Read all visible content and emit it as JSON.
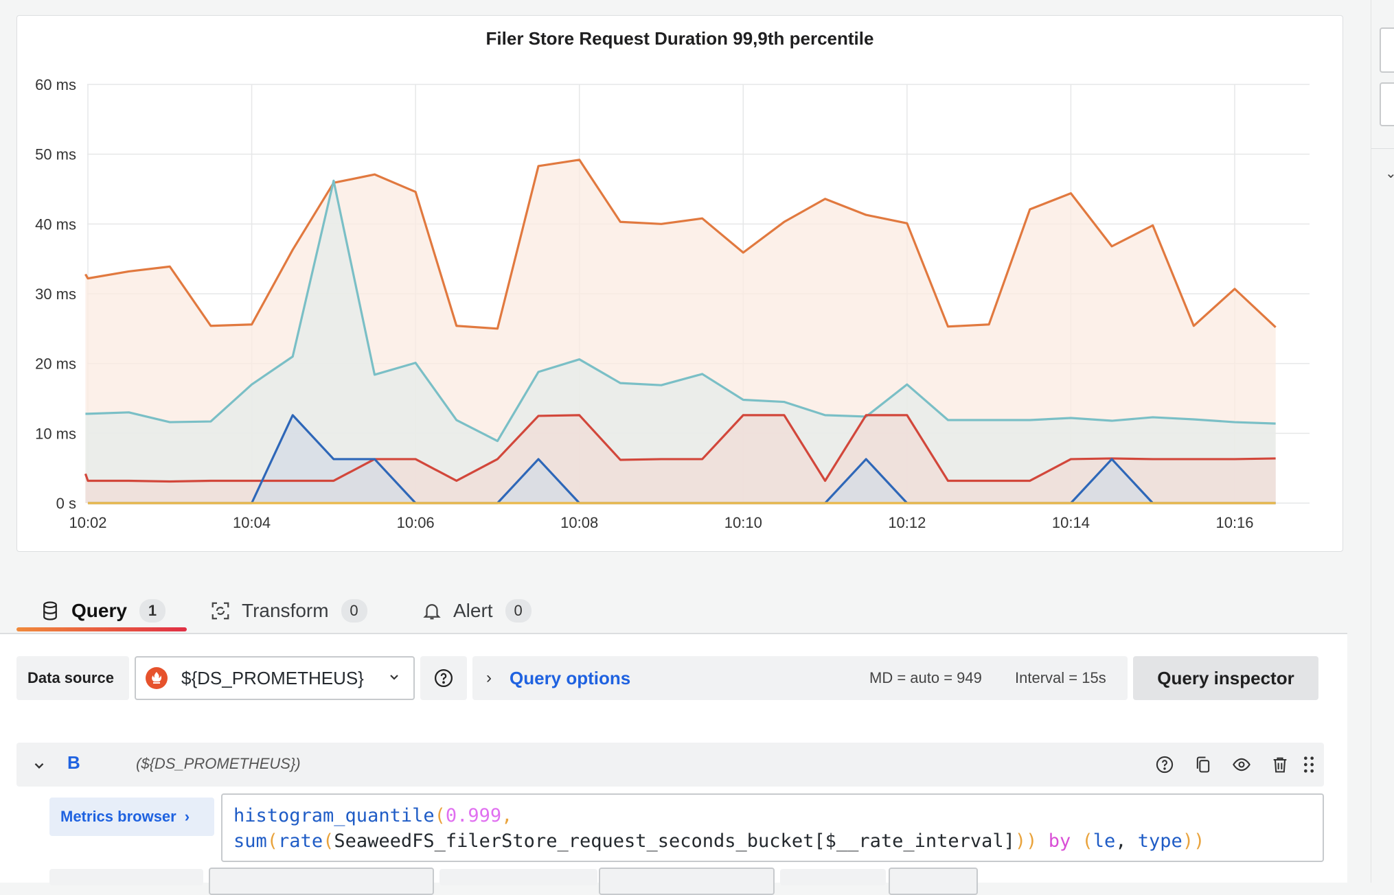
{
  "panel": {
    "title": "Filer Store Request Duration 99,9th percentile"
  },
  "chart_data": {
    "type": "area",
    "title": "Filer Store Request Duration 99,9th percentile",
    "y_tick_labels": [
      "0 s",
      "10 ms",
      "20 ms",
      "30 ms",
      "40 ms",
      "50 ms",
      "60 ms"
    ],
    "y_tick_values": [
      0,
      10,
      20,
      30,
      40,
      50,
      60
    ],
    "ylim": [
      0,
      60
    ],
    "x_tick_labels": [
      "10:02",
      "10:04",
      "10:06",
      "10:08",
      "10:10",
      "10:12",
      "10:14",
      "10:16"
    ],
    "x_tick_minutes": [
      2,
      4,
      6,
      8,
      10,
      12,
      14,
      16
    ],
    "x_unit": "minutes past 10:00",
    "grid": true,
    "legend": "none",
    "series": [
      {
        "color": "#e1793f",
        "fill": "#fbebe2",
        "x": [
          1.97,
          2.0,
          2.5,
          3.0,
          3.5,
          4.0,
          4.5,
          5.0,
          5.5,
          6.0,
          6.5,
          7.0,
          7.5,
          8.0,
          8.5,
          9.0,
          9.5,
          10.0,
          10.5,
          11.0,
          11.5,
          12.0,
          12.5,
          13.0,
          13.5,
          14.0,
          14.5,
          15.0,
          15.5,
          16.0,
          16.5
        ],
        "y": [
          32.8,
          32.2,
          33.2,
          33.9,
          25.4,
          25.6,
          36.3,
          45.9,
          47.1,
          44.6,
          25.4,
          25.0,
          48.3,
          49.2,
          40.3,
          40.0,
          40.8,
          35.9,
          40.3,
          43.6,
          41.3,
          40.1,
          25.3,
          25.6,
          42.1,
          44.4,
          36.8,
          39.8,
          25.4,
          30.7,
          25.2
        ]
      },
      {
        "color": "#7abfc6",
        "fill": "#e5ece9",
        "x": [
          1.97,
          2.0,
          2.5,
          3.0,
          3.5,
          4.0,
          4.5,
          5.0,
          5.5,
          6.0,
          6.5,
          7.0,
          7.5,
          8.0,
          8.5,
          9.0,
          9.5,
          10.0,
          10.5,
          11.0,
          11.5,
          12.0,
          12.5,
          13.0,
          13.5,
          14.0,
          14.5,
          15.0,
          15.5,
          16.0,
          16.5
        ],
        "y": [
          12.8,
          12.8,
          13.0,
          11.6,
          11.7,
          17.0,
          21.0,
          46.2,
          18.4,
          20.1,
          11.9,
          8.9,
          18.8,
          20.6,
          17.2,
          16.9,
          18.5,
          14.8,
          14.5,
          12.6,
          12.4,
          17.0,
          11.9,
          11.9,
          11.9,
          12.2,
          11.8,
          12.3,
          12.0,
          11.6,
          11.4
        ]
      },
      {
        "color": "#d2473b",
        "fill": "#f0dcd7",
        "x": [
          1.97,
          2.0,
          2.5,
          3.0,
          3.5,
          4.0,
          4.5,
          5.0,
          5.5,
          6.0,
          6.5,
          7.0,
          7.5,
          8.0,
          8.5,
          9.0,
          9.5,
          10.0,
          10.5,
          11.0,
          11.5,
          12.0,
          12.5,
          13.0,
          13.5,
          14.0,
          14.5,
          15.0,
          15.5,
          16.0,
          16.5
        ],
        "y": [
          4.2,
          3.2,
          3.2,
          3.1,
          3.2,
          3.2,
          3.2,
          3.2,
          6.3,
          6.3,
          3.2,
          6.3,
          12.5,
          12.6,
          6.2,
          6.3,
          6.3,
          12.6,
          12.6,
          3.2,
          12.6,
          12.6,
          3.2,
          3.2,
          3.2,
          6.3,
          6.4,
          6.3,
          6.3,
          6.3,
          6.4
        ]
      },
      {
        "color": "#2e67b8",
        "fill": "#d4dbe6",
        "x": [
          2.0,
          4.0,
          4.5,
          5.0,
          5.5,
          6.0,
          7.0,
          7.5,
          8.0,
          11.0,
          11.5,
          12.0,
          14.0,
          14.5,
          15.0,
          16.5
        ],
        "y": [
          0,
          0,
          12.6,
          6.3,
          6.3,
          0,
          0,
          6.3,
          0,
          0,
          6.3,
          0,
          0,
          6.3,
          0,
          0
        ]
      },
      {
        "color": "#e9b84a",
        "fill": "none",
        "x": [
          2.0,
          16.5
        ],
        "y": [
          0,
          0
        ]
      }
    ]
  },
  "tabs": {
    "query": {
      "label": "Query",
      "count": "1"
    },
    "transform": {
      "label": "Transform",
      "count": "0"
    },
    "alert": {
      "label": "Alert",
      "count": "0"
    }
  },
  "toolbar": {
    "ds_label": "Data source",
    "ds_value": "${DS_PROMETHEUS}",
    "query_options_label": "Query options",
    "md_text": "MD = auto = 949",
    "interval_text": "Interval = 15s",
    "inspector_label": "Query inspector"
  },
  "query": {
    "ref": "B",
    "datasource": "(${DS_PROMETHEUS})",
    "metrics_browser_label": "Metrics browser",
    "code": {
      "l1_fn": "histogram_quantile",
      "l1_num": "0.999",
      "l2_fn1": "sum",
      "l2_fn2": "rate",
      "l2_metric": "SeaweedFS_filerStore_request_seconds_bucket[$__rate_interval]",
      "l2_kw": "by",
      "l2_le": "le",
      "l2_type": "type"
    }
  },
  "colors": {
    "accent_blue": "#1f62e0",
    "tab_underline_start": "#f08a3b",
    "tab_underline_end": "#e02f44",
    "prometheus": "#e6522c"
  }
}
